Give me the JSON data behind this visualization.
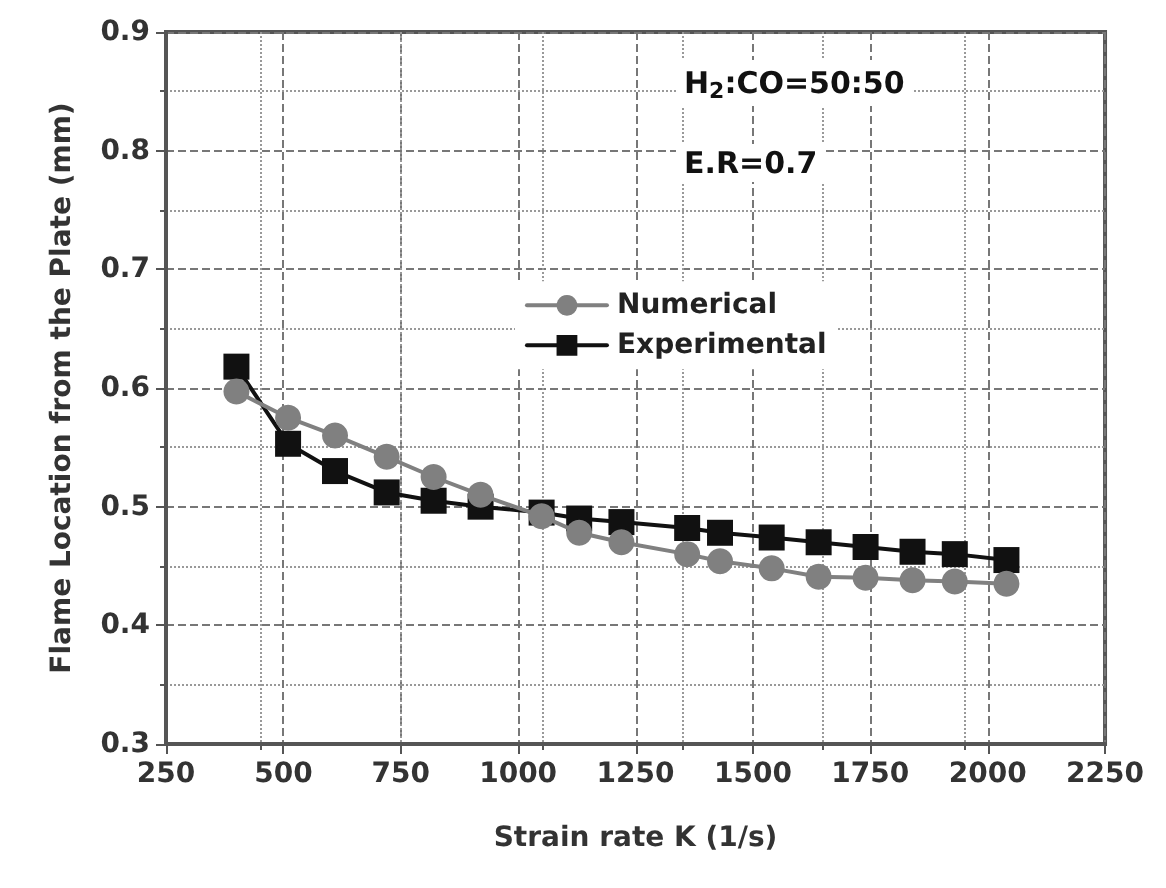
{
  "chart_data": {
    "type": "line",
    "xlabel": "Strain rate K (1/s)",
    "ylabel": "Flame Location from the Plate (mm)",
    "annotations": [
      "H$_{2}$:CO=50:50",
      "E.R=0.7"
    ],
    "x": [
      400,
      510,
      610,
      720,
      820,
      920,
      1050,
      1130,
      1220,
      1360,
      1430,
      1540,
      1640,
      1740,
      1840,
      1930,
      2040
    ],
    "series": [
      {
        "name": "Numerical",
        "color": "#808080",
        "marker": "circle",
        "values": [
          0.597,
          0.575,
          0.56,
          0.542,
          0.525,
          0.51,
          0.492,
          0.478,
          0.47,
          0.46,
          0.454,
          0.448,
          0.441,
          0.44,
          0.438,
          0.437,
          0.435
        ]
      },
      {
        "name": "Experimental",
        "color": "#111111",
        "marker": "square",
        "values": [
          0.618,
          0.553,
          0.53,
          0.512,
          0.505,
          0.5,
          0.495,
          0.49,
          0.487,
          0.482,
          0.478,
          0.474,
          0.47,
          0.466,
          0.462,
          0.46,
          0.455
        ]
      }
    ],
    "xlim": [
      250,
      2250
    ],
    "xticks": [
      250,
      500,
      750,
      1000,
      1250,
      1500,
      1750,
      2000,
      2250
    ],
    "ylim": [
      0.3,
      0.9
    ],
    "yticks": [
      0.3,
      0.4,
      0.5,
      0.6,
      0.7,
      0.8,
      0.9
    ],
    "grid": true,
    "legend": "top",
    "line_style": "solid"
  }
}
